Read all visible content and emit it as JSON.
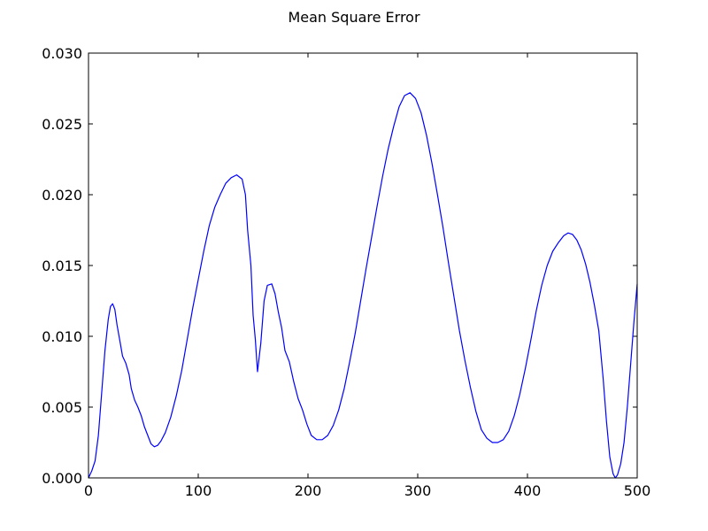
{
  "chart_data": {
    "type": "line",
    "title": "Mean Square Error",
    "xlabel": "",
    "ylabel": "",
    "xlim": [
      0,
      500
    ],
    "ylim": [
      0,
      0.03
    ],
    "grid": false,
    "x_ticks": [
      "0",
      "100",
      "200",
      "300",
      "400",
      "500"
    ],
    "y_ticks": [
      "0.000",
      "0.005",
      "0.010",
      "0.015",
      "0.020",
      "0.025",
      "0.030"
    ],
    "series": [
      {
        "color": "#0000ff",
        "points": [
          [
            0,
            0.0
          ],
          [
            3,
            0.0005
          ],
          [
            6,
            0.0012
          ],
          [
            9,
            0.003
          ],
          [
            12,
            0.006
          ],
          [
            15,
            0.009
          ],
          [
            18,
            0.0112
          ],
          [
            20,
            0.0121
          ],
          [
            22,
            0.0123
          ],
          [
            24,
            0.0119
          ],
          [
            26,
            0.0108
          ],
          [
            29,
            0.0095
          ],
          [
            31,
            0.0086
          ],
          [
            34,
            0.0081
          ],
          [
            37,
            0.0073
          ],
          [
            39,
            0.0063
          ],
          [
            42,
            0.0055
          ],
          [
            45,
            0.005
          ],
          [
            48,
            0.0044
          ],
          [
            51,
            0.0036
          ],
          [
            54,
            0.003
          ],
          [
            57,
            0.0024
          ],
          [
            60,
            0.0022
          ],
          [
            63,
            0.0023
          ],
          [
            66,
            0.0026
          ],
          [
            70,
            0.0032
          ],
          [
            75,
            0.0043
          ],
          [
            80,
            0.0058
          ],
          [
            85,
            0.0076
          ],
          [
            90,
            0.0098
          ],
          [
            95,
            0.012
          ],
          [
            100,
            0.014
          ],
          [
            105,
            0.016
          ],
          [
            110,
            0.0178
          ],
          [
            115,
            0.0191
          ],
          [
            120,
            0.02
          ],
          [
            125,
            0.0208
          ],
          [
            130,
            0.0212
          ],
          [
            135,
            0.0214
          ],
          [
            140,
            0.0211
          ],
          [
            143,
            0.02
          ],
          [
            145,
            0.0175
          ],
          [
            148,
            0.015
          ],
          [
            150,
            0.0115
          ],
          [
            152,
            0.0098
          ],
          [
            154,
            0.0075
          ],
          [
            157,
            0.0095
          ],
          [
            160,
            0.0125
          ],
          [
            163,
            0.0136
          ],
          [
            167,
            0.0137
          ],
          [
            170,
            0.013
          ],
          [
            173,
            0.0117
          ],
          [
            176,
            0.0106
          ],
          [
            179,
            0.009
          ],
          [
            183,
            0.0082
          ],
          [
            187,
            0.0068
          ],
          [
            191,
            0.0056
          ],
          [
            195,
            0.0048
          ],
          [
            199,
            0.0038
          ],
          [
            203,
            0.003
          ],
          [
            208,
            0.0027
          ],
          [
            213,
            0.0027
          ],
          [
            218,
            0.003
          ],
          [
            223,
            0.0037
          ],
          [
            228,
            0.0048
          ],
          [
            233,
            0.0063
          ],
          [
            238,
            0.0082
          ],
          [
            243,
            0.0102
          ],
          [
            248,
            0.0125
          ],
          [
            253,
            0.0148
          ],
          [
            258,
            0.017
          ],
          [
            263,
            0.0192
          ],
          [
            268,
            0.0213
          ],
          [
            273,
            0.0232
          ],
          [
            278,
            0.0248
          ],
          [
            283,
            0.0262
          ],
          [
            288,
            0.027
          ],
          [
            293,
            0.0272
          ],
          [
            298,
            0.0268
          ],
          [
            303,
            0.0258
          ],
          [
            308,
            0.0242
          ],
          [
            313,
            0.0222
          ],
          [
            318,
            0.02
          ],
          [
            323,
            0.0177
          ],
          [
            328,
            0.0152
          ],
          [
            333,
            0.0128
          ],
          [
            338,
            0.0104
          ],
          [
            343,
            0.0083
          ],
          [
            348,
            0.0064
          ],
          [
            353,
            0.0047
          ],
          [
            358,
            0.0034
          ],
          [
            363,
            0.0028
          ],
          [
            368,
            0.0025
          ],
          [
            373,
            0.0025
          ],
          [
            378,
            0.0027
          ],
          [
            383,
            0.0033
          ],
          [
            388,
            0.0044
          ],
          [
            393,
            0.0059
          ],
          [
            398,
            0.0077
          ],
          [
            403,
            0.0097
          ],
          [
            408,
            0.0118
          ],
          [
            413,
            0.0136
          ],
          [
            418,
            0.015
          ],
          [
            423,
            0.016
          ],
          [
            428,
            0.0166
          ],
          [
            433,
            0.0171
          ],
          [
            437,
            0.0173
          ],
          [
            441,
            0.0172
          ],
          [
            445,
            0.0168
          ],
          [
            449,
            0.0161
          ],
          [
            453,
            0.0151
          ],
          [
            457,
            0.0138
          ],
          [
            461,
            0.0122
          ],
          [
            465,
            0.0104
          ],
          [
            469,
            0.007
          ],
          [
            472,
            0.004
          ],
          [
            475,
            0.0015
          ],
          [
            478,
            0.0003
          ],
          [
            480,
            0.0
          ],
          [
            482,
            0.0002
          ],
          [
            485,
            0.001
          ],
          [
            488,
            0.0025
          ],
          [
            491,
            0.005
          ],
          [
            494,
            0.008
          ],
          [
            497,
            0.011
          ],
          [
            500,
            0.0137
          ]
        ]
      }
    ]
  }
}
